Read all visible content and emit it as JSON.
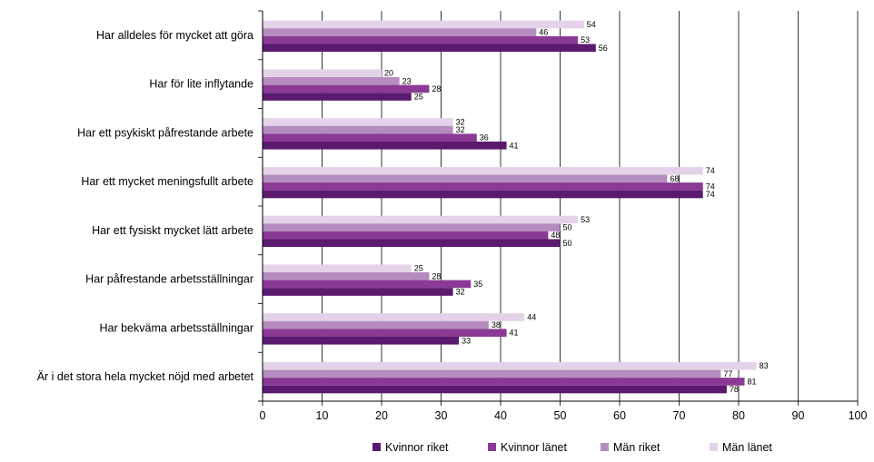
{
  "chart_data": {
    "type": "bar",
    "orientation": "horizontal",
    "categories": [
      "Har alldeles för mycket att göra",
      "Har för lite inflytande",
      "Har ett psykiskt påfrestande arbete",
      "Har ett mycket meningsfullt arbete",
      "Har ett fysiskt mycket lätt arbete",
      "Har påfrestande arbetsställningar",
      "Har bekväma arbetsställningar",
      "Är i det stora hela mycket nöjd med arbetet"
    ],
    "series": [
      {
        "name": "Kvinnor riket",
        "color": "#5a1a6e",
        "values": [
          56,
          25,
          41,
          74,
          50,
          32,
          33,
          78
        ]
      },
      {
        "name": "Kvinnor länet",
        "color": "#8a3a94",
        "values": [
          53,
          28,
          36,
          74,
          48,
          35,
          41,
          81
        ]
      },
      {
        "name": "Män riket",
        "color": "#b58cbf",
        "values": [
          46,
          23,
          32,
          68,
          50,
          28,
          38,
          77
        ]
      },
      {
        "name": "Män länet",
        "color": "#e4d3e8",
        "values": [
          54,
          20,
          32,
          74,
          53,
          25,
          44,
          83
        ]
      }
    ],
    "xlim": [
      0,
      100
    ],
    "xticks": [
      0,
      10,
      20,
      30,
      40,
      50,
      60,
      70,
      80,
      90,
      100
    ],
    "grid": true,
    "legend_position": "bottom",
    "title": "",
    "xlabel": "",
    "ylabel": ""
  }
}
